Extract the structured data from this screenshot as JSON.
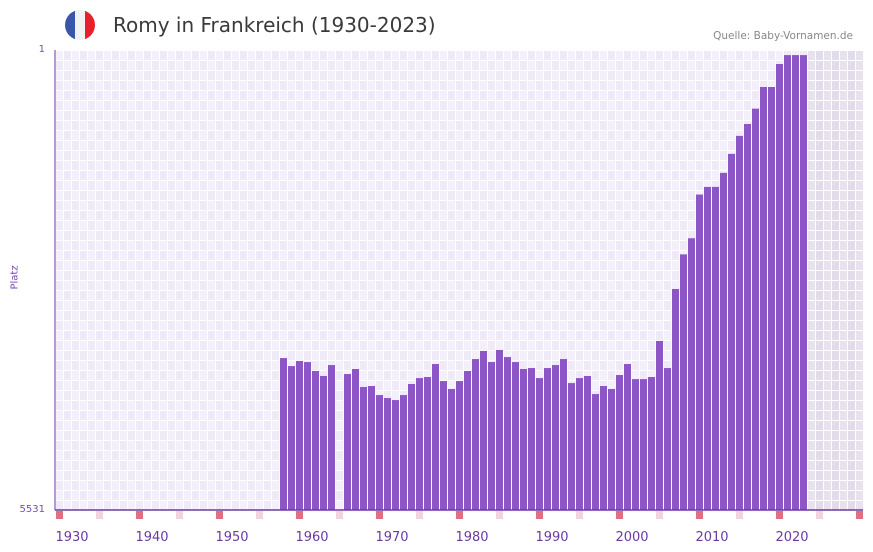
{
  "header": {
    "title": "Romy in Frankreich (1930-2023)",
    "source": "Quelle: Baby-Vornamen.de",
    "flag_colors": [
      "#3a56a8",
      "#f2f2f4",
      "#e8202b"
    ]
  },
  "colors": {
    "bar": "#8e55c7",
    "axis": "#6a3aa0",
    "marker_decade": "#e07080",
    "marker_half": "#f3d3dc"
  },
  "chart_data": {
    "type": "bar",
    "title": "Romy in Frankreich (1930-2023)",
    "xlabel": "",
    "ylabel": "Platz",
    "y_scale": "log",
    "y_inverted": true,
    "ylim": [
      1,
      5531
    ],
    "y_tick_labels": [
      "1",
      "5531"
    ],
    "xlim": [
      1930,
      2030
    ],
    "x_tick_labels": [
      "1930",
      "1940",
      "1950",
      "1960",
      "1970",
      "1980",
      "1990",
      "2000",
      "2010",
      "2020"
    ],
    "grid": true,
    "years": [
      1958,
      1959,
      1960,
      1961,
      1962,
      1963,
      1964,
      1965,
      1966,
      1967,
      1968,
      1969,
      1970,
      1971,
      1972,
      1973,
      1974,
      1975,
      1976,
      1977,
      1978,
      1979,
      1980,
      1981,
      1982,
      1983,
      1984,
      1985,
      1986,
      1987,
      1988,
      1989,
      1990,
      1991,
      1992,
      1993,
      1994,
      1995,
      1996,
      1997,
      1998,
      1999,
      2000,
      2001,
      2002,
      2003,
      2004,
      2005,
      2006,
      2007,
      2008,
      2009,
      2010,
      2011,
      2012,
      2013,
      2014,
      2015,
      2016,
      2017,
      2018,
      2019,
      2020,
      2021,
      2022,
      2023
    ],
    "values": [
      321,
      373,
      339,
      346,
      409,
      449,
      366,
      null,
      433,
      394,
      552,
      542,
      642,
      679,
      705,
      642,
      522,
      467,
      458,
      359,
      494,
      573,
      494,
      409,
      327,
      281,
      346,
      276,
      315,
      346,
      394,
      387,
      467,
      387,
      366,
      327,
      513,
      467,
      449,
      630,
      542,
      573,
      441,
      359,
      476,
      476,
      458,
      233,
      387,
      88,
      46,
      34,
      15,
      13,
      13,
      10,
      7,
      5,
      4,
      3,
      2,
      2,
      1.3,
      1.1,
      1.1,
      1.1
    ]
  }
}
